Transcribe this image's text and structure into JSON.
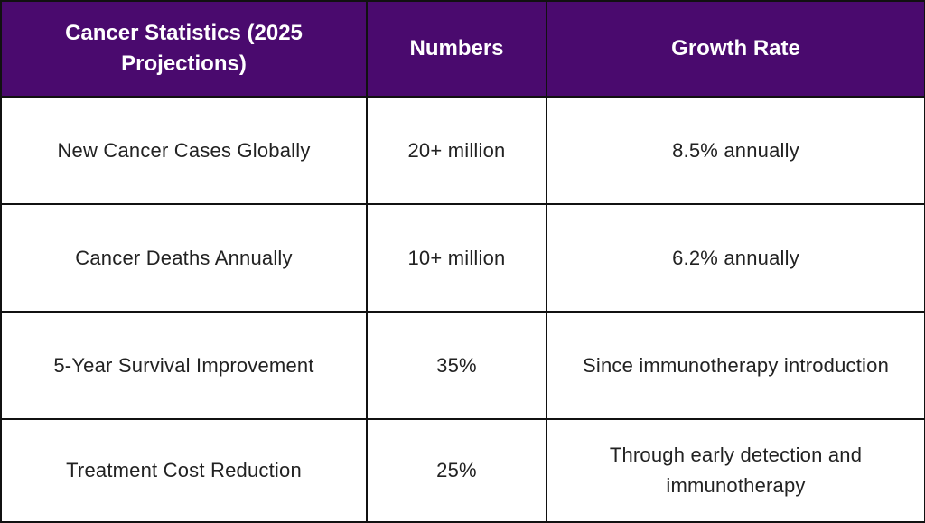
{
  "table": {
    "headers": [
      "Cancer Statistics (2025 Projections)",
      "Numbers",
      "Growth Rate"
    ],
    "rows": [
      [
        "New Cancer Cases Globally",
        "20+ million",
        "8.5% annually"
      ],
      [
        "Cancer Deaths Annually",
        "10+ million",
        "6.2% annually"
      ],
      [
        "5-Year Survival Improvement",
        "35%",
        "Since immunotherapy introduction"
      ],
      [
        "Treatment Cost Reduction",
        "25%",
        "Through early detection and immunotherapy"
      ]
    ]
  },
  "colors": {
    "header_bg": "#4a0a6e",
    "header_text": "#ffffff",
    "border": "#111111",
    "body_text": "#222222"
  }
}
